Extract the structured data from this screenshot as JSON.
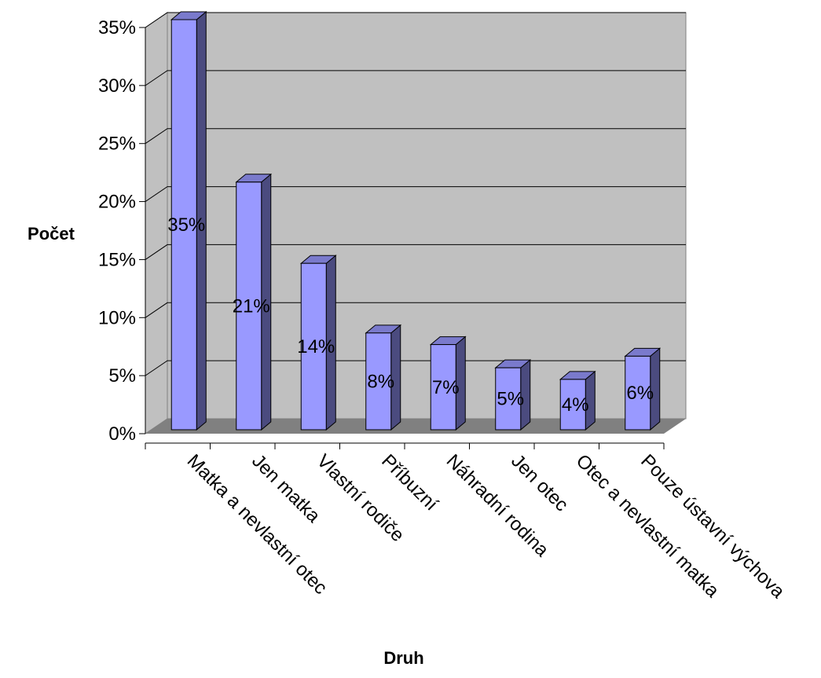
{
  "chart_data": {
    "type": "bar",
    "categories": [
      "Matka a nevlastní otec",
      "Jen matka",
      "Vlastní rodiče",
      "Příbuzní",
      "Náhradní rodina",
      "Jen otec",
      "Otec a nevlastní matka",
      "Pouze ústavní výchova"
    ],
    "values": [
      35,
      21,
      14,
      8,
      7,
      5,
      4,
      6
    ],
    "data_labels": [
      "35%",
      "21%",
      "14%",
      "8%",
      "7%",
      "5%",
      "4%",
      "6%"
    ],
    "xlabel": "Druh",
    "ylabel": "Počet",
    "ylim": [
      0,
      35
    ],
    "y_ticks": [
      "0%",
      "5%",
      "10%",
      "15%",
      "20%",
      "25%",
      "30%",
      "35%"
    ],
    "grid": true,
    "legend": "none",
    "style": "3d-column"
  },
  "colors": {
    "bar_front": "#9999ff",
    "bar_side": "#4b4b7f",
    "bar_top": "#7a7acc",
    "wall": "#c0c0c0",
    "floor": "#808080",
    "grid": "#000000"
  }
}
